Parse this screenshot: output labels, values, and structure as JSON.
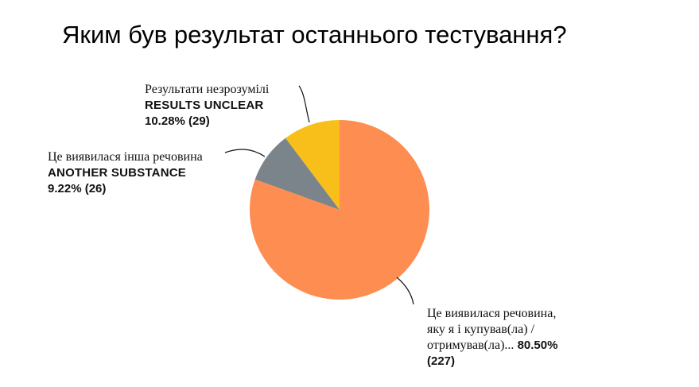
{
  "title": "Яким був результат останнього тестування?",
  "chart_data": {
    "type": "pie",
    "slices": [
      {
        "label_ua": "Це виявилася речовина, яку я і купував(ла) / отримував(ла)...",
        "label_en": "",
        "percent": 80.5,
        "count": 227,
        "color": "#fd8d51"
      },
      {
        "label_ua": "Це виявилася інша речовина",
        "label_en": "ANOTHER SUBSTANCE",
        "percent": 9.22,
        "count": 26,
        "color": "#7b848a"
      },
      {
        "label_ua": "Результати незрозумілі",
        "label_en": "RESULTS UNCLEAR",
        "percent": 10.28,
        "count": 29,
        "color": "#f8bf1a"
      }
    ]
  },
  "labels": {
    "unclear": {
      "ua": "Результати незрозумілі",
      "en": "RESULTS UNCLEAR",
      "value": "10.28% (29)"
    },
    "another": {
      "ua": "Це виявилася інша речовина",
      "en": "ANOTHER SUBSTANCE",
      "value": "9.22% (26)"
    },
    "same": {
      "ua_line1": "Це виявилася речовина,",
      "ua_line2": "яку я і купував(ла) /",
      "ua_line3": "отримував(ла)...",
      "value_inline": "80.50%",
      "value_line": "(227)"
    }
  }
}
